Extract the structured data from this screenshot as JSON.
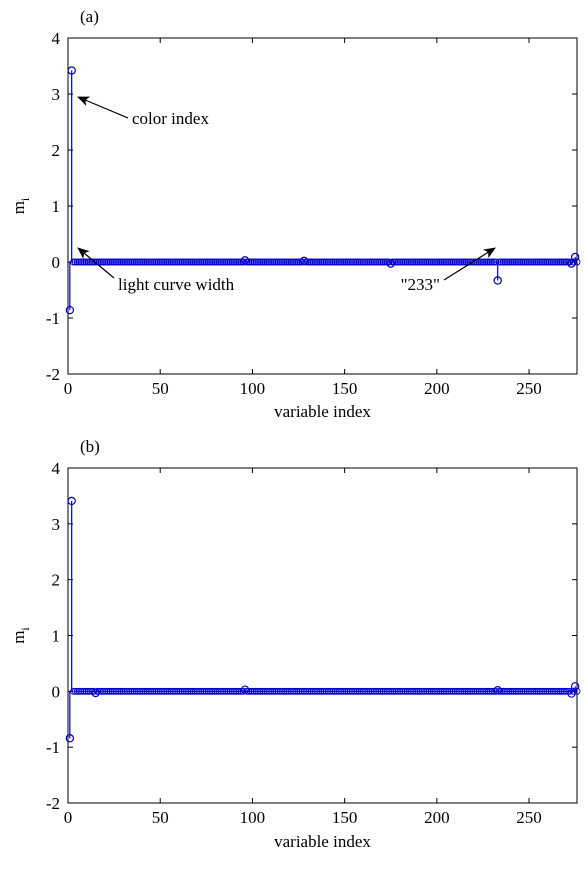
{
  "chart_data": [
    {
      "type": "stem",
      "panel_label": "(a)",
      "xlabel": "variable index",
      "ylabel_base": "m",
      "ylabel_sub": "i",
      "xlim": [
        0,
        276
      ],
      "ylim": [
        -2,
        4
      ],
      "xticks": [
        0,
        50,
        100,
        150,
        200,
        250
      ],
      "yticks": [
        -2,
        -1,
        0,
        1,
        2,
        3,
        4
      ],
      "series": [
        {
          "color": "#0000cc",
          "spikes": [
            {
              "x": 1,
              "y": -0.86
            },
            {
              "x": 2,
              "y": 3.42
            },
            {
              "x": 233,
              "y": -0.33
            },
            {
              "x": 275,
              "y": 0.09
            },
            {
              "x": 273,
              "y": -0.03
            },
            {
              "x": 96,
              "y": 0.03
            },
            {
              "x": 128,
              "y": 0.02
            },
            {
              "x": 175,
              "y": -0.03
            }
          ],
          "baseline_range": [
            3,
            276
          ],
          "baseline_value": 0
        }
      ],
      "annotations": [
        {
          "text": "color index",
          "target_x": 2,
          "target_y": 3.42
        },
        {
          "text": "light curve width",
          "target_x": 1,
          "target_y": -0.86
        },
        {
          "text": "\"233\"",
          "target_x": 233,
          "target_y": -0.33
        }
      ]
    },
    {
      "type": "stem",
      "panel_label": "(b)",
      "xlabel": "variable index",
      "ylabel_base": "m",
      "ylabel_sub": "i",
      "xlim": [
        0,
        276
      ],
      "ylim": [
        -2,
        4
      ],
      "xticks": [
        0,
        50,
        100,
        150,
        200,
        250
      ],
      "yticks": [
        -2,
        -1,
        0,
        1,
        2,
        3,
        4
      ],
      "series": [
        {
          "color": "#0000cc",
          "spikes": [
            {
              "x": 1,
              "y": -0.84
            },
            {
              "x": 2,
              "y": 3.41
            },
            {
              "x": 275,
              "y": 0.09
            },
            {
              "x": 273,
              "y": -0.04
            },
            {
              "x": 96,
              "y": 0.03
            },
            {
              "x": 233,
              "y": 0.02
            },
            {
              "x": 15,
              "y": -0.03
            }
          ],
          "baseline_range": [
            3,
            276
          ],
          "baseline_value": 0
        }
      ],
      "annotations": []
    }
  ]
}
